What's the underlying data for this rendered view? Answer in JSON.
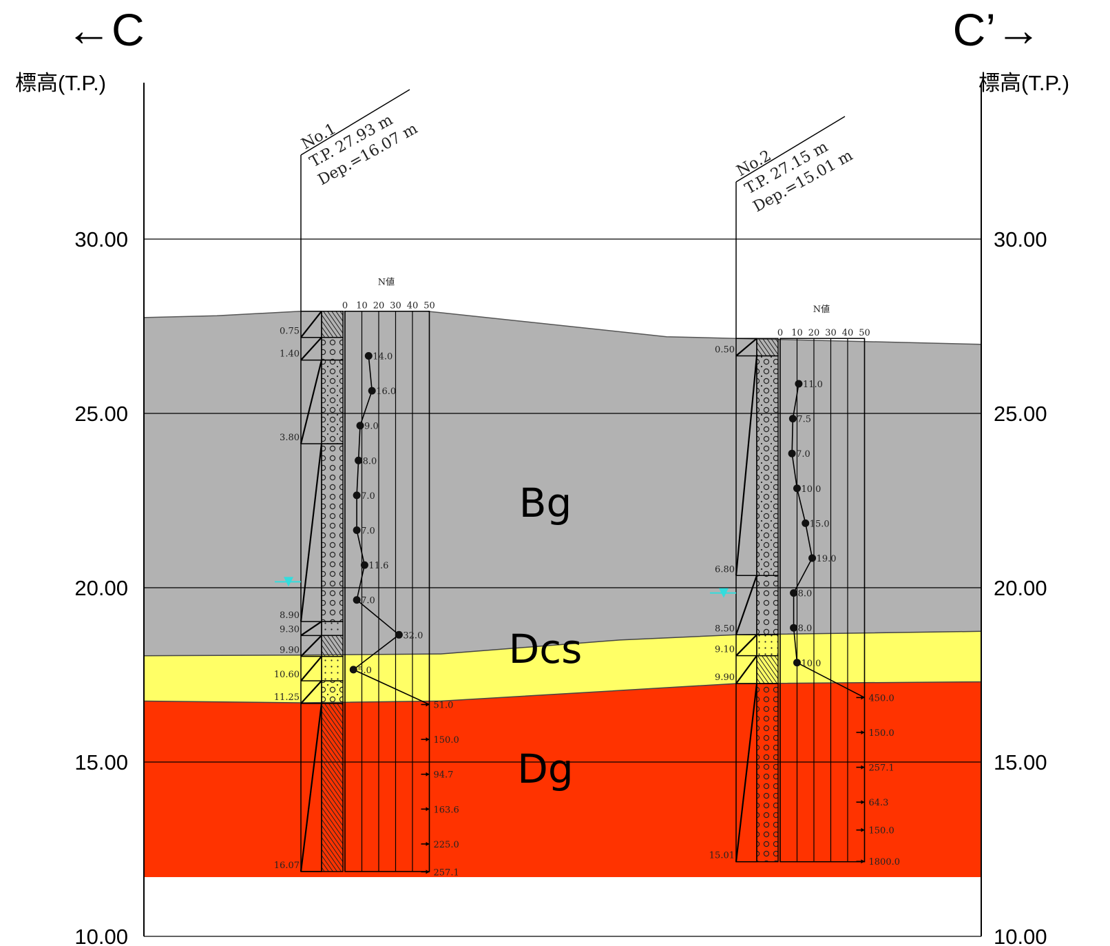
{
  "direction": {
    "left": "←C",
    "right": "C’→"
  },
  "axis": {
    "left_label": "標高(T.P.)",
    "right_label": "標高(T.P.)",
    "ticks": [
      "30.00",
      "25.00",
      "20.00",
      "15.00",
      "10.00"
    ],
    "tick_values": [
      30,
      25,
      20,
      15,
      10
    ],
    "min": 10,
    "max": 30
  },
  "colors": {
    "Bg": "#b2b2b2",
    "Dcs": "#ffff66",
    "Dg": "#ff3300",
    "water_level": "#33dddd"
  },
  "layers": [
    {
      "name": "Bg"
    },
    {
      "name": "Dcs"
    },
    {
      "name": "Dg"
    }
  ],
  "boreholes": [
    {
      "no": "No.1",
      "tp": "T.P. 27.93 m",
      "dep": "Dep.=16.07 m",
      "elevation": 27.93,
      "depth": 16.07,
      "n_header": "N値",
      "n_scale": [
        "0",
        "10",
        "20",
        "30",
        "40",
        "50"
      ],
      "boundaries": [
        {
          "label": "0.75",
          "depth": 0.75
        },
        {
          "label": "1.40",
          "depth": 1.4
        },
        {
          "label": "3.80",
          "depth": 3.8
        },
        {
          "label": "8.90",
          "depth": 8.9
        },
        {
          "label": "9.30",
          "depth": 9.3
        },
        {
          "label": "9.90",
          "depth": 9.9
        },
        {
          "label": "10.60",
          "depth": 10.6
        },
        {
          "label": "11.25",
          "depth": 11.25
        },
        {
          "label": "16.07",
          "depth": 16.07
        }
      ],
      "water_level_elevation": 20.17,
      "n_values": [
        {
          "label": "14.0",
          "elevation": 26.65,
          "n": 14
        },
        {
          "label": "16.0",
          "elevation": 25.65,
          "n": 16
        },
        {
          "label": "9.0",
          "elevation": 24.65,
          "n": 9
        },
        {
          "label": "8.0",
          "elevation": 23.65,
          "n": 8
        },
        {
          "label": "7.0",
          "elevation": 22.65,
          "n": 7
        },
        {
          "label": "7.0",
          "elevation": 21.65,
          "n": 7
        },
        {
          "label": "11.6",
          "elevation": 20.65,
          "n": 11.6
        },
        {
          "label": "7.0",
          "elevation": 19.65,
          "n": 7
        },
        {
          "label": "32.0",
          "elevation": 18.65,
          "n": 32
        },
        {
          "label": "5.0",
          "elevation": 17.65,
          "n": 5
        }
      ],
      "converted": [
        {
          "label": "51.0",
          "elevation": 16.65
        },
        {
          "label": "150.0",
          "elevation": 15.65
        },
        {
          "label": "94.7",
          "elevation": 14.65
        },
        {
          "label": "163.6",
          "elevation": 13.65
        },
        {
          "label": "225.0",
          "elevation": 12.65
        },
        {
          "label": "257.1",
          "elevation": 11.85
        }
      ]
    },
    {
      "no": "No.2",
      "tp": "T.P. 27.15 m",
      "dep": "Dep.=15.01 m",
      "elevation": 27.15,
      "depth": 15.01,
      "n_header": "N値",
      "n_scale": [
        "0",
        "10",
        "20",
        "30",
        "40",
        "50"
      ],
      "boundaries": [
        {
          "label": "0.50",
          "depth": 0.5
        },
        {
          "label": "6.80",
          "depth": 6.8
        },
        {
          "label": "8.50",
          "depth": 8.5
        },
        {
          "label": "9.10",
          "depth": 9.1
        },
        {
          "label": "9.90",
          "depth": 9.9
        },
        {
          "label": "15.01",
          "depth": 15.01
        }
      ],
      "water_level_elevation": 19.85,
      "n_values": [
        {
          "label": "11.0",
          "elevation": 25.85,
          "n": 11
        },
        {
          "label": "7.5",
          "elevation": 24.85,
          "n": 7.5
        },
        {
          "label": "7.0",
          "elevation": 23.85,
          "n": 7
        },
        {
          "label": "10.0",
          "elevation": 22.85,
          "n": 10
        },
        {
          "label": "15.0",
          "elevation": 21.85,
          "n": 15
        },
        {
          "label": "19.0",
          "elevation": 20.85,
          "n": 19
        },
        {
          "label": "8.0",
          "elevation": 19.85,
          "n": 8
        },
        {
          "label": "8.0",
          "elevation": 18.85,
          "n": 8
        },
        {
          "label": "10.0",
          "elevation": 17.85,
          "n": 10
        }
      ],
      "converted": [
        {
          "label": "450.0",
          "elevation": 16.85
        },
        {
          "label": "150.0",
          "elevation": 15.85
        },
        {
          "label": "257.1",
          "elevation": 14.85
        },
        {
          "label": "64.3",
          "elevation": 13.85
        },
        {
          "label": "150.0",
          "elevation": 13.05
        },
        {
          "label": "1800.0",
          "elevation": 12.15
        }
      ]
    }
  ]
}
